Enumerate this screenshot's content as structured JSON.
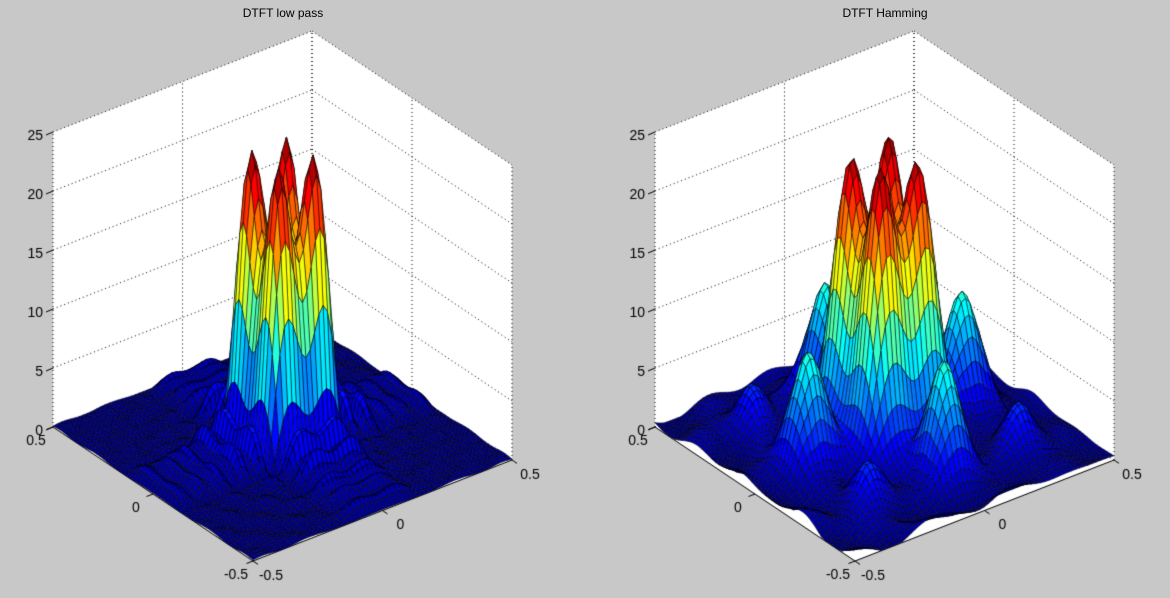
{
  "figure": {
    "background": "#c8c8c8",
    "wall_color": "#ffffff",
    "grid_color": "#000000",
    "label_color": "#000000",
    "colormap": "jet"
  },
  "chart_data": [
    {
      "type": "surface",
      "title": "DTFT low pass",
      "x_ticks": [
        "-0.5",
        "0",
        "0.5"
      ],
      "x_tick_values": [
        -0.5,
        0,
        0.5
      ],
      "y_ticks": [
        "-0.5",
        "0",
        "0.5"
      ],
      "y_tick_values": [
        -0.5,
        0,
        0.5
      ],
      "z_ticks": [
        "0",
        "5",
        "10",
        "15",
        "20",
        "25"
      ],
      "z_tick_values": [
        0,
        5,
        10,
        15,
        20,
        25
      ],
      "x_range": [
        -0.5,
        0.5
      ],
      "y_range": [
        -0.5,
        0.5
      ],
      "z_range": [
        0,
        25
      ],
      "mesh_n": 60,
      "peak_height_approx": 23.8,
      "surface_model": {
        "kind": "rect_window_dtft",
        "N": 14,
        "f0": 0.06,
        "taper": 0.12,
        "amp": 200,
        "pedestal": {
          "amp": 0,
          "sigma": 0.2
        },
        "tail_damp": {
          "start": 0.16,
          "width": 0.15,
          "floor": 0.45
        },
        "ripple": {
          "amp": 0.45,
          "freq": 9.5,
          "phase": 0.05,
          "decay": 1.6
        },
        "wave": {
          "amp": 0,
          "freq": 3.5,
          "px": 0.9,
          "py": 2.0
        }
      }
    },
    {
      "type": "surface",
      "title": "DTFT Hamming",
      "x_ticks": [
        "-0.5",
        "0",
        "0.5"
      ],
      "x_tick_values": [
        -0.5,
        0,
        0.5
      ],
      "y_ticks": [
        "-0.5",
        "0",
        "0.5"
      ],
      "y_tick_values": [
        -0.5,
        0,
        0.5
      ],
      "z_ticks": [
        "0",
        "5",
        "10",
        "15",
        "20",
        "25"
      ],
      "z_tick_values": [
        0,
        5,
        10,
        15,
        20,
        25
      ],
      "x_range": [
        -0.5,
        0.5
      ],
      "y_range": [
        -0.5,
        0.5
      ],
      "z_range": [
        0,
        25
      ],
      "mesh_n": 60,
      "peak_height_approx": 24,
      "surface_model": {
        "kind": "hamming_window_dtft",
        "N": 15,
        "f0": 0.074,
        "amp": 295,
        "pedestal": {
          "amp": 3.2,
          "sigma": 0.24
        },
        "secondary_freq": 0.3,
        "secondary_amp": 0.22,
        "diagonal_amp": 0.16,
        "ripple": {
          "amp": 1.3,
          "freq": 6,
          "phase": 0.05,
          "decay": 0.9
        },
        "wave": {
          "amp": 0.45,
          "freq": 3.5,
          "px": 0.9,
          "py": 2.0
        }
      }
    }
  ]
}
